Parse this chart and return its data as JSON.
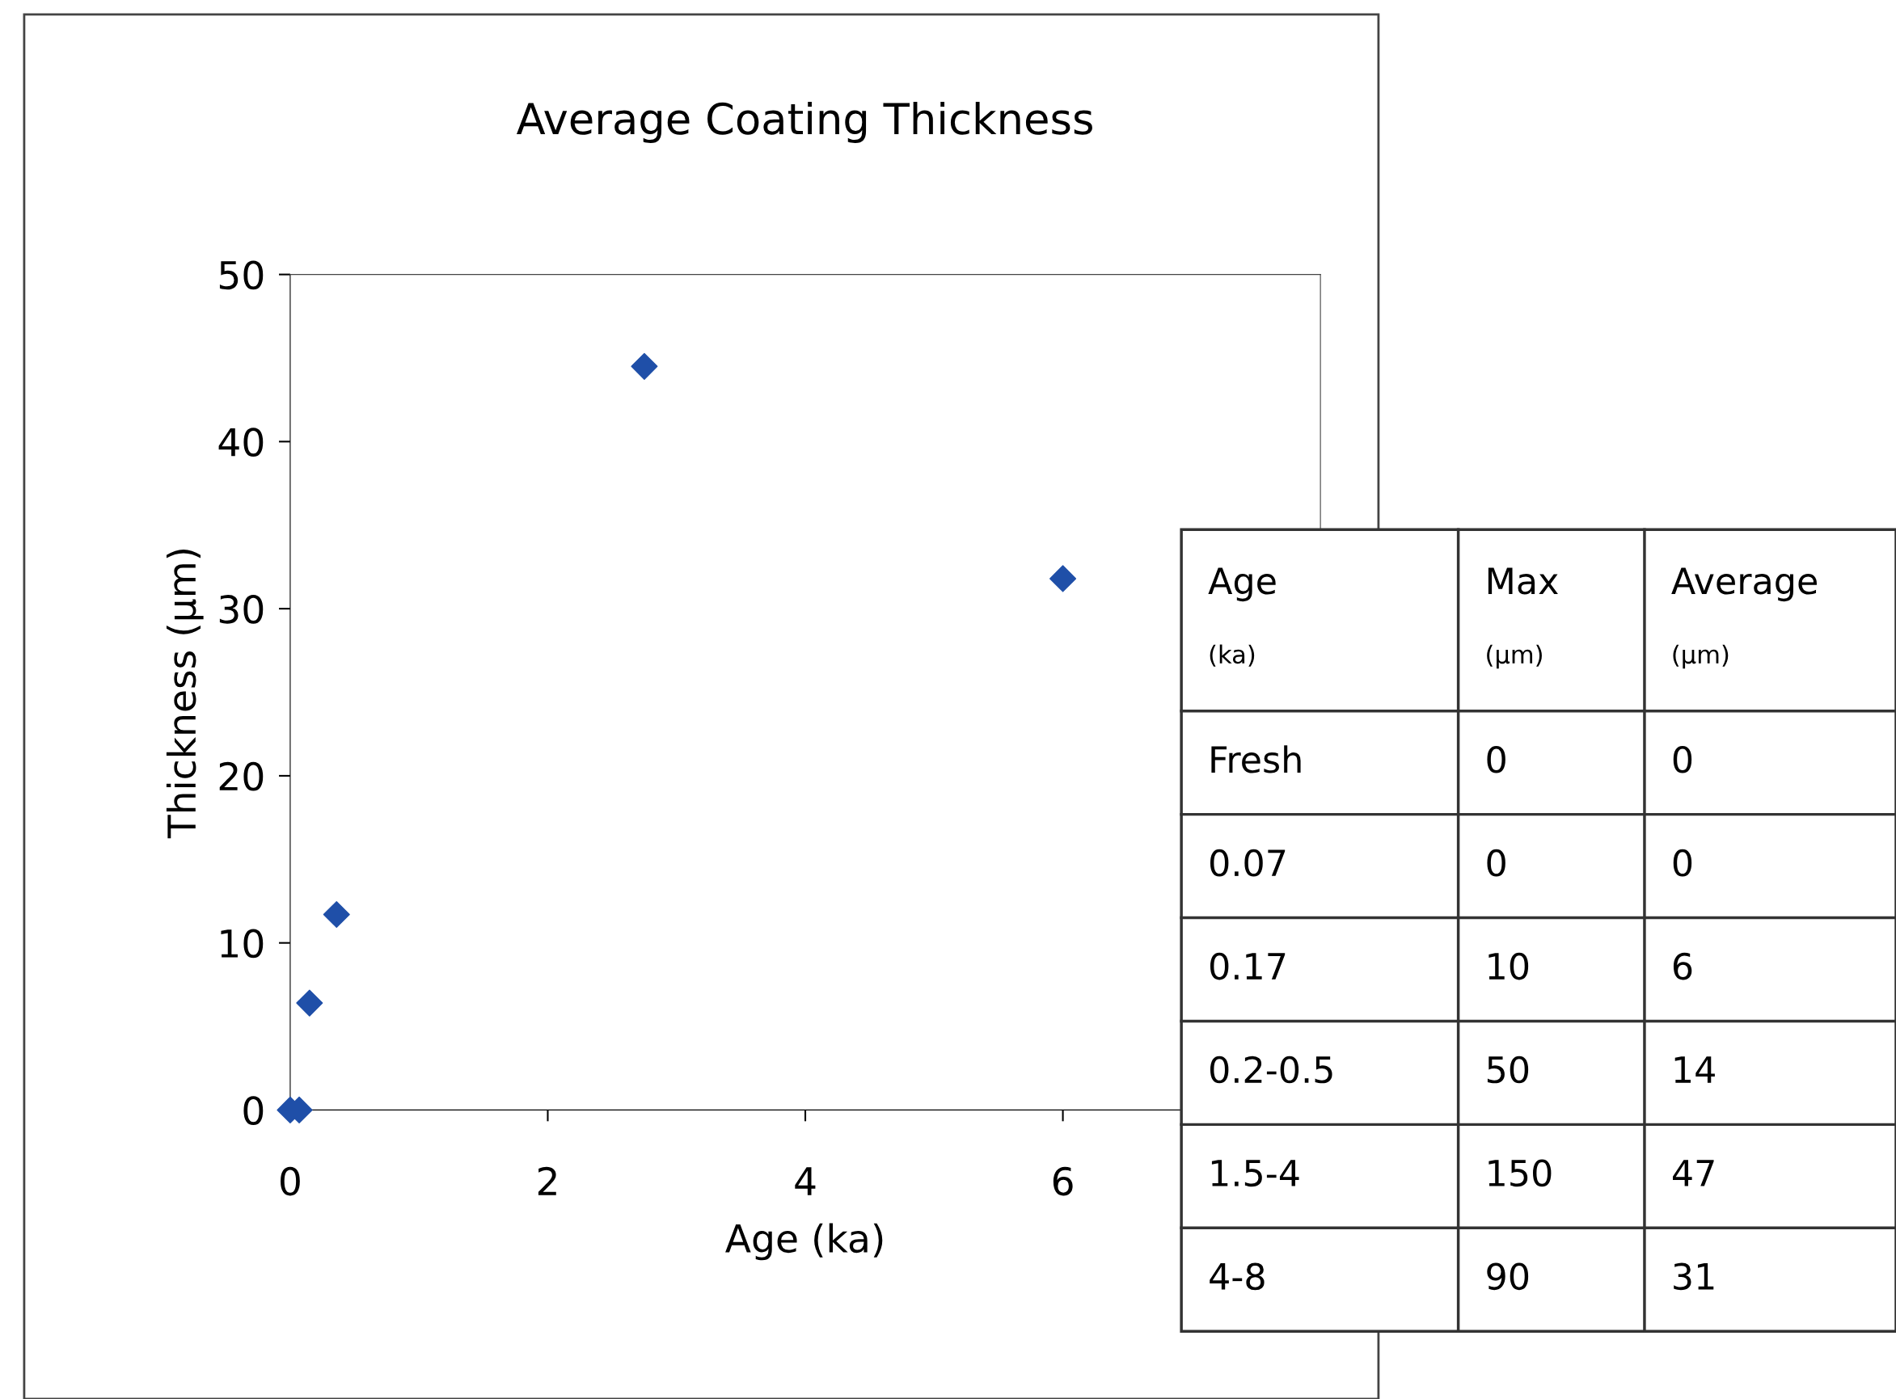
{
  "chart_data": [
    {
      "type": "scatter",
      "title": "Average Coating Thickness",
      "xlabel": "Age (ka)",
      "ylabel": "Thickness (µm)",
      "x": [
        0,
        0.07,
        0.15,
        0.36,
        2.75,
        6.0
      ],
      "series": [
        {
          "color": "#1f4fa8",
          "values": [
            0,
            0,
            6.4,
            11.7,
            44.5,
            31.8
          ]
        }
      ],
      "xlim": [
        0,
        8
      ],
      "xticks": [
        0,
        2,
        4,
        6
      ],
      "ylim": [
        0,
        50
      ],
      "yticks": [
        0,
        10,
        20,
        30,
        40,
        50
      ],
      "marker": "diamond",
      "grid": false,
      "legend": false
    },
    {
      "type": "other",
      "annotations": [
        "Age\n(ka)",
        "Max\n(µm)",
        "Average\n(µm)",
        "Fresh",
        "0",
        "0",
        "0.07",
        "0",
        "0",
        "0.17",
        "10",
        "6",
        "0.2-0.5",
        "50",
        "14",
        "1.5-4",
        "150",
        "47",
        "4-8",
        "90",
        "31"
      ]
    }
  ]
}
